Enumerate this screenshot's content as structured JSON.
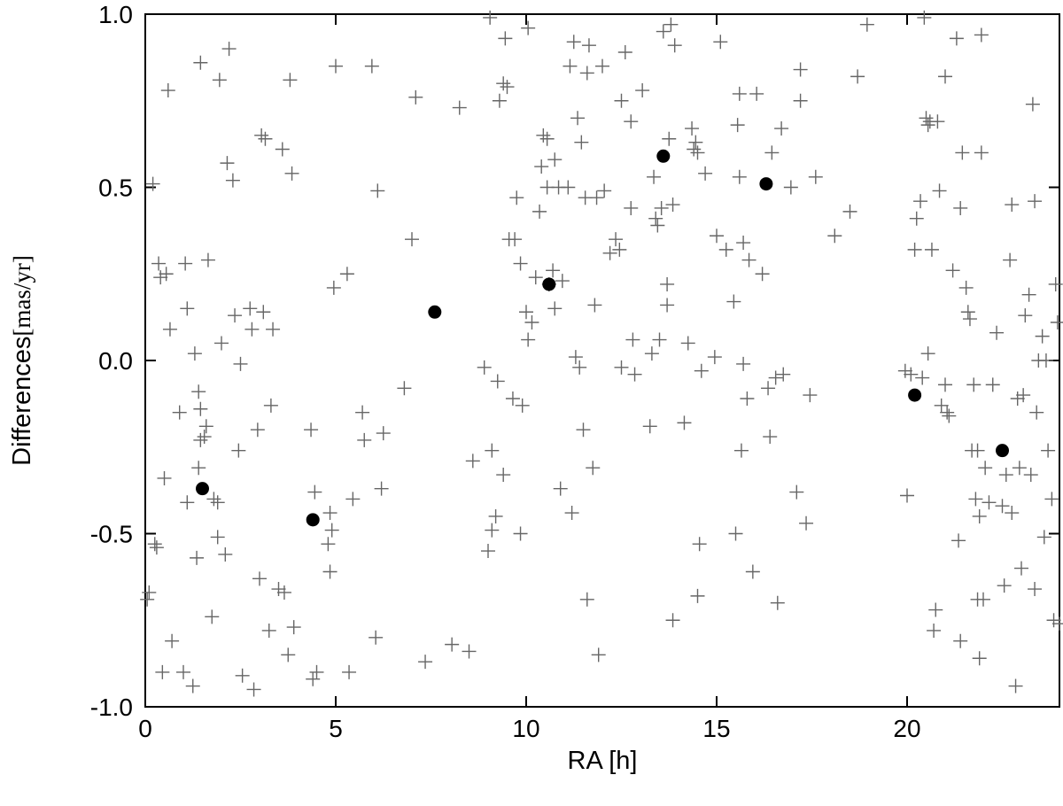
{
  "chart_data": {
    "type": "scatter",
    "xlabel": "RA [h]",
    "ylabel_main": "Differences",
    "ylabel_unit": "[mas/yr]",
    "xlim": [
      0,
      24
    ],
    "ylim": [
      -1.0,
      1.0
    ],
    "grid": false,
    "legend": "none",
    "x_ticks": [
      0,
      5,
      10,
      15,
      20
    ],
    "x_tick_labels": [
      "0",
      "5",
      "10",
      "15",
      "20"
    ],
    "y_ticks": [
      -1.0,
      -0.5,
      0.0,
      0.5,
      1.0
    ],
    "y_tick_labels": [
      "-1.0",
      "-0.5",
      "0.0",
      "0.5",
      "1.0"
    ],
    "series": [
      {
        "marker": "plus",
        "color": "#666666",
        "points": [
          [
            0.05,
            -0.69
          ],
          [
            0.1,
            -0.67
          ],
          [
            0.2,
            0.51
          ],
          [
            0.25,
            -0.53
          ],
          [
            0.3,
            -0.54
          ],
          [
            0.35,
            0.28
          ],
          [
            0.4,
            0.24
          ],
          [
            0.45,
            -0.9
          ],
          [
            0.5,
            -0.34
          ],
          [
            0.55,
            0.25
          ],
          [
            0.6,
            0.78
          ],
          [
            0.65,
            0.09
          ],
          [
            0.7,
            -0.81
          ],
          [
            0.9,
            -0.15
          ],
          [
            1.0,
            -0.9
          ],
          [
            1.1,
            -0.41
          ],
          [
            1.05,
            0.28
          ],
          [
            1.1,
            0.15
          ],
          [
            1.25,
            -0.94
          ],
          [
            1.3,
            0.02
          ],
          [
            1.35,
            -0.57
          ],
          [
            1.4,
            -0.09
          ],
          [
            1.4,
            -0.31
          ],
          [
            1.45,
            0.86
          ],
          [
            1.45,
            -0.23
          ],
          [
            1.45,
            -0.14
          ],
          [
            1.55,
            -0.22
          ],
          [
            1.6,
            -0.19
          ],
          [
            1.65,
            0.29
          ],
          [
            1.75,
            -0.74
          ],
          [
            1.8,
            -0.4
          ],
          [
            1.9,
            -0.41
          ],
          [
            1.9,
            -0.51
          ],
          [
            1.95,
            0.81
          ],
          [
            2.0,
            0.05
          ],
          [
            2.1,
            -0.56
          ],
          [
            2.15,
            0.57
          ],
          [
            2.2,
            0.9
          ],
          [
            2.3,
            0.52
          ],
          [
            2.35,
            0.13
          ],
          [
            2.45,
            -0.26
          ],
          [
            2.5,
            -0.01
          ],
          [
            2.55,
            -0.91
          ],
          [
            2.75,
            0.15
          ],
          [
            2.8,
            0.09
          ],
          [
            2.85,
            -0.95
          ],
          [
            2.95,
            -0.2
          ],
          [
            3.0,
            -0.63
          ],
          [
            3.05,
            0.65
          ],
          [
            3.1,
            0.14
          ],
          [
            3.15,
            0.64
          ],
          [
            3.25,
            -0.78
          ],
          [
            3.3,
            -0.13
          ],
          [
            3.35,
            0.09
          ],
          [
            3.5,
            -0.66
          ],
          [
            3.6,
            0.61
          ],
          [
            3.65,
            -0.67
          ],
          [
            3.75,
            -0.85
          ],
          [
            3.8,
            0.81
          ],
          [
            3.85,
            0.54
          ],
          [
            3.9,
            -0.77
          ],
          [
            4.35,
            -0.2
          ],
          [
            4.4,
            -0.92
          ],
          [
            4.45,
            -0.38
          ],
          [
            4.5,
            -0.9
          ],
          [
            4.8,
            -0.53
          ],
          [
            4.85,
            -0.44
          ],
          [
            4.85,
            -0.61
          ],
          [
            4.9,
            -0.49
          ],
          [
            4.95,
            0.21
          ],
          [
            5.0,
            0.85
          ],
          [
            5.3,
            0.25
          ],
          [
            5.35,
            -0.9
          ],
          [
            5.45,
            -0.4
          ],
          [
            5.7,
            -0.15
          ],
          [
            5.75,
            -0.23
          ],
          [
            5.95,
            0.85
          ],
          [
            6.05,
            -0.8
          ],
          [
            6.1,
            0.49
          ],
          [
            6.2,
            -0.37
          ],
          [
            6.25,
            -0.21
          ],
          [
            6.8,
            -0.08
          ],
          [
            7.0,
            0.35
          ],
          [
            7.1,
            0.76
          ],
          [
            7.35,
            -0.87
          ],
          [
            8.05,
            -0.82
          ],
          [
            8.25,
            0.73
          ],
          [
            8.5,
            -0.84
          ],
          [
            8.6,
            -0.29
          ],
          [
            8.9,
            -0.02
          ],
          [
            9.0,
            -0.55
          ],
          [
            9.05,
            0.99
          ],
          [
            9.1,
            -0.49
          ],
          [
            9.1,
            -0.26
          ],
          [
            9.2,
            -0.45
          ],
          [
            9.25,
            -0.06
          ],
          [
            9.3,
            0.75
          ],
          [
            9.4,
            0.8
          ],
          [
            9.4,
            -0.33
          ],
          [
            9.45,
            0.93
          ],
          [
            9.5,
            0.79
          ],
          [
            9.55,
            0.35
          ],
          [
            9.65,
            -0.11
          ],
          [
            9.7,
            0.35
          ],
          [
            9.75,
            0.47
          ],
          [
            9.85,
            0.28
          ],
          [
            9.85,
            -0.5
          ],
          [
            9.9,
            -0.13
          ],
          [
            10.0,
            0.14
          ],
          [
            10.05,
            0.06
          ],
          [
            10.05,
            0.96
          ],
          [
            10.15,
            0.11
          ],
          [
            10.25,
            0.24
          ],
          [
            10.35,
            0.43
          ],
          [
            10.4,
            0.56
          ],
          [
            10.45,
            0.65
          ],
          [
            10.55,
            0.64
          ],
          [
            10.55,
            0.5
          ],
          [
            10.6,
            0.22
          ],
          [
            10.7,
            0.26
          ],
          [
            10.75,
            0.15
          ],
          [
            10.75,
            0.58
          ],
          [
            10.85,
            0.5
          ],
          [
            10.9,
            -0.37
          ],
          [
            10.95,
            0.23
          ],
          [
            11.1,
            0.5
          ],
          [
            11.15,
            0.85
          ],
          [
            11.2,
            -0.44
          ],
          [
            11.25,
            0.92
          ],
          [
            11.3,
            0.01
          ],
          [
            11.35,
            0.7
          ],
          [
            11.4,
            -0.02
          ],
          [
            11.45,
            0.63
          ],
          [
            11.5,
            -0.2
          ],
          [
            11.55,
            0.47
          ],
          [
            11.6,
            0.83
          ],
          [
            11.6,
            -0.69
          ],
          [
            11.65,
            0.91
          ],
          [
            11.75,
            -0.31
          ],
          [
            11.8,
            0.16
          ],
          [
            11.85,
            0.47
          ],
          [
            11.9,
            -0.85
          ],
          [
            12.0,
            0.85
          ],
          [
            12.05,
            0.49
          ],
          [
            12.2,
            0.31
          ],
          [
            12.35,
            0.35
          ],
          [
            12.45,
            0.32
          ],
          [
            12.5,
            0.75
          ],
          [
            12.5,
            -0.02
          ],
          [
            12.6,
            0.89
          ],
          [
            12.75,
            0.69
          ],
          [
            12.75,
            0.44
          ],
          [
            12.8,
            0.06
          ],
          [
            12.85,
            -0.04
          ],
          [
            13.05,
            0.78
          ],
          [
            13.25,
            -0.19
          ],
          [
            13.3,
            0.02
          ],
          [
            13.35,
            0.53
          ],
          [
            13.4,
            0.41
          ],
          [
            13.45,
            0.39
          ],
          [
            13.5,
            0.06
          ],
          [
            13.55,
            0.44
          ],
          [
            13.6,
            0.95
          ],
          [
            13.7,
            0.16
          ],
          [
            13.7,
            0.22
          ],
          [
            13.75,
            0.64
          ],
          [
            13.8,
            0.97
          ],
          [
            13.85,
            0.45
          ],
          [
            13.85,
            -0.75
          ],
          [
            13.9,
            0.91
          ],
          [
            14.15,
            -0.18
          ],
          [
            14.25,
            0.05
          ],
          [
            14.35,
            0.67
          ],
          [
            14.4,
            0.61
          ],
          [
            14.45,
            0.63
          ],
          [
            14.5,
            0.6
          ],
          [
            14.5,
            -0.68
          ],
          [
            14.55,
            -0.53
          ],
          [
            14.6,
            -0.03
          ],
          [
            14.7,
            0.54
          ],
          [
            14.95,
            0.01
          ],
          [
            15.0,
            0.36
          ],
          [
            15.1,
            0.92
          ],
          [
            15.25,
            0.32
          ],
          [
            15.45,
            0.17
          ],
          [
            15.5,
            -0.5
          ],
          [
            15.55,
            0.68
          ],
          [
            15.6,
            0.77
          ],
          [
            15.6,
            0.53
          ],
          [
            15.65,
            -0.26
          ],
          [
            15.7,
            0.34
          ],
          [
            15.7,
            -0.01
          ],
          [
            15.8,
            -0.11
          ],
          [
            15.85,
            0.29
          ],
          [
            15.95,
            -0.61
          ],
          [
            16.05,
            0.77
          ],
          [
            16.2,
            0.25
          ],
          [
            16.35,
            -0.08
          ],
          [
            16.4,
            -0.22
          ],
          [
            16.45,
            0.6
          ],
          [
            16.55,
            -0.05
          ],
          [
            16.6,
            -0.7
          ],
          [
            16.7,
            0.67
          ],
          [
            16.75,
            -0.04
          ],
          [
            16.95,
            0.5
          ],
          [
            17.1,
            -0.38
          ],
          [
            17.2,
            0.84
          ],
          [
            17.2,
            0.75
          ],
          [
            17.35,
            -0.47
          ],
          [
            17.45,
            -0.1
          ],
          [
            17.6,
            0.53
          ],
          [
            18.1,
            0.36
          ],
          [
            18.5,
            0.43
          ],
          [
            18.7,
            0.82
          ],
          [
            18.95,
            0.97
          ],
          [
            19.95,
            -0.03
          ],
          [
            20.0,
            -0.39
          ],
          [
            20.1,
            -0.04
          ],
          [
            20.2,
            0.32
          ],
          [
            20.25,
            0.41
          ],
          [
            20.35,
            0.46
          ],
          [
            20.4,
            -0.05
          ],
          [
            20.45,
            0.99
          ],
          [
            20.5,
            0.7
          ],
          [
            20.55,
            0.68
          ],
          [
            20.55,
            0.02
          ],
          [
            20.6,
            0.69
          ],
          [
            20.65,
            0.32
          ],
          [
            20.7,
            -0.78
          ],
          [
            20.75,
            -0.72
          ],
          [
            20.8,
            0.69
          ],
          [
            20.85,
            0.49
          ],
          [
            20.9,
            -0.13
          ],
          [
            21.0,
            0.82
          ],
          [
            21.0,
            -0.07
          ],
          [
            21.05,
            -0.15
          ],
          [
            21.1,
            -0.16
          ],
          [
            21.2,
            0.26
          ],
          [
            21.3,
            0.93
          ],
          [
            21.35,
            -0.52
          ],
          [
            21.4,
            -0.81
          ],
          [
            21.4,
            0.44
          ],
          [
            21.45,
            0.6
          ],
          [
            21.55,
            0.21
          ],
          [
            21.6,
            0.14
          ],
          [
            21.65,
            0.12
          ],
          [
            21.7,
            -0.26
          ],
          [
            21.75,
            -0.07
          ],
          [
            21.8,
            -0.4
          ],
          [
            21.85,
            -0.69
          ],
          [
            21.9,
            -0.45
          ],
          [
            21.95,
            0.94
          ],
          [
            21.95,
            0.6
          ],
          [
            21.85,
            -0.26
          ],
          [
            21.9,
            -0.86
          ],
          [
            22.0,
            -0.69
          ],
          [
            22.05,
            -0.31
          ],
          [
            22.15,
            -0.41
          ],
          [
            22.25,
            -0.07
          ],
          [
            22.35,
            0.08
          ],
          [
            22.5,
            -0.42
          ],
          [
            22.55,
            -0.65
          ],
          [
            22.6,
            -0.33
          ],
          [
            22.7,
            0.29
          ],
          [
            22.75,
            -0.44
          ],
          [
            22.75,
            0.45
          ],
          [
            22.85,
            -0.94
          ],
          [
            22.9,
            -0.11
          ],
          [
            22.95,
            -0.31
          ],
          [
            23.0,
            -0.6
          ],
          [
            23.05,
            -0.1
          ],
          [
            23.1,
            0.13
          ],
          [
            23.2,
            0.19
          ],
          [
            23.25,
            -0.33
          ],
          [
            23.3,
            0.74
          ],
          [
            23.35,
            0.46
          ],
          [
            23.35,
            -0.66
          ],
          [
            23.4,
            -0.15
          ],
          [
            23.45,
            0.0
          ],
          [
            23.55,
            0.07
          ],
          [
            23.6,
            -0.51
          ],
          [
            23.65,
            0.0
          ],
          [
            23.7,
            -0.26
          ],
          [
            23.8,
            -0.4
          ],
          [
            23.85,
            -0.75
          ],
          [
            23.9,
            0.22
          ],
          [
            23.95,
            0.11
          ],
          [
            24.0,
            -0.76
          ]
        ]
      },
      {
        "marker": "filled-circle",
        "color": "#000000",
        "points": [
          [
            1.5,
            -0.37
          ],
          [
            4.4,
            -0.46
          ],
          [
            7.6,
            0.14
          ],
          [
            10.6,
            0.22
          ],
          [
            13.6,
            0.59
          ],
          [
            16.3,
            0.51
          ],
          [
            20.2,
            -0.1
          ],
          [
            22.5,
            -0.26
          ]
        ]
      }
    ]
  }
}
